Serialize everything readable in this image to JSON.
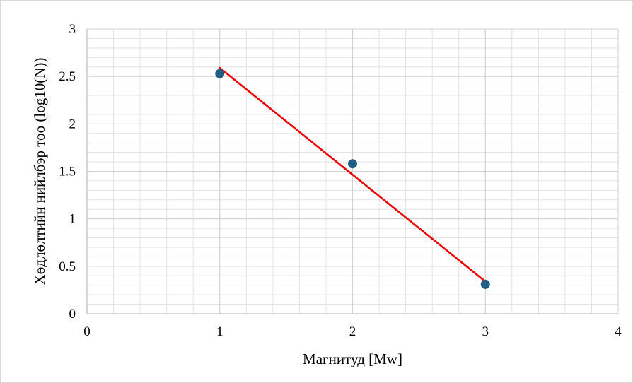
{
  "chart_data": {
    "type": "scatter",
    "title": "",
    "xlabel": "Магнитуд [Mw]",
    "ylabel": "Хөдлөлтийн нийлбэр тоо (log10(N))",
    "xlim": [
      0,
      4
    ],
    "ylim": [
      0,
      3
    ],
    "x_ticks": [
      "0",
      "1",
      "2",
      "3",
      "4"
    ],
    "y_ticks": [
      "0",
      "0.5",
      "1",
      "1.5",
      "2",
      "2.5",
      "3"
    ],
    "grid": true,
    "legend": "none",
    "series": [
      {
        "kind": "scatter",
        "color": "#1f5f86",
        "points": [
          {
            "x": 1,
            "y": 2.53
          },
          {
            "x": 2,
            "y": 1.58
          },
          {
            "x": 3,
            "y": 0.31
          }
        ]
      },
      {
        "kind": "trendline",
        "color": "#ee0000",
        "points": [
          {
            "x": 1,
            "y": 2.59
          },
          {
            "x": 3,
            "y": 0.34
          }
        ]
      }
    ]
  }
}
